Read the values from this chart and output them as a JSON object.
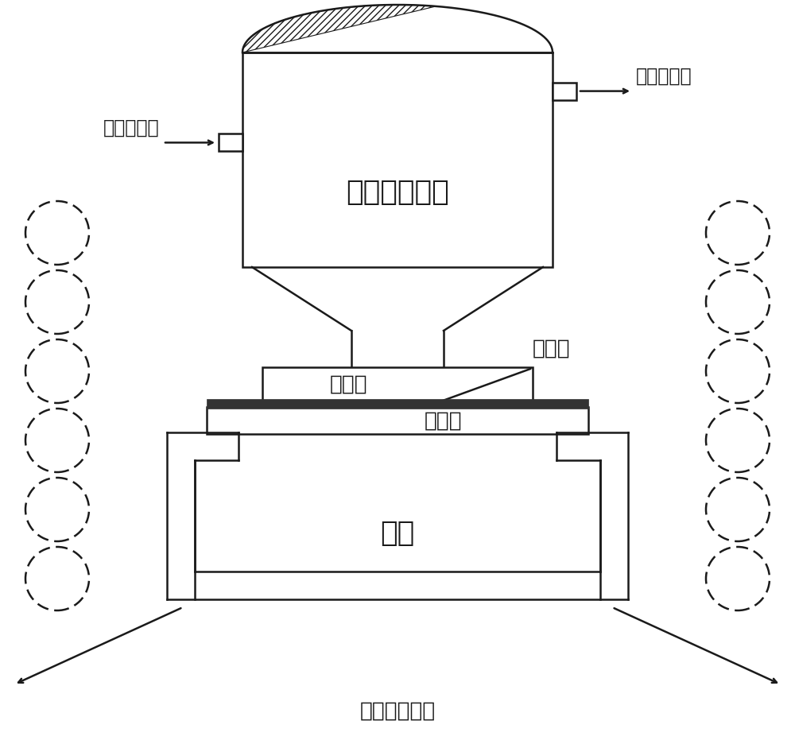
{
  "bg_color": "white",
  "line_color": "#1a1a1a",
  "lw": 1.8,
  "label_ultrasonic": "超声波工具头",
  "label_mg_top": "镛合金",
  "label_mg_bottom": "镛合金",
  "label_clamp": "夹具",
  "label_interlayer": "中间层",
  "label_coolant_in": "冷却水进口",
  "label_coolant_out": "冷却水出口",
  "label_coil": "感应加热线圈",
  "font_large": 26,
  "font_med": 19,
  "font_small": 17,
  "xlim": [
    0,
    10
  ],
  "ylim": [
    0,
    9.37
  ],
  "figw": 10.0,
  "figh": 9.37,
  "dpi": 100
}
